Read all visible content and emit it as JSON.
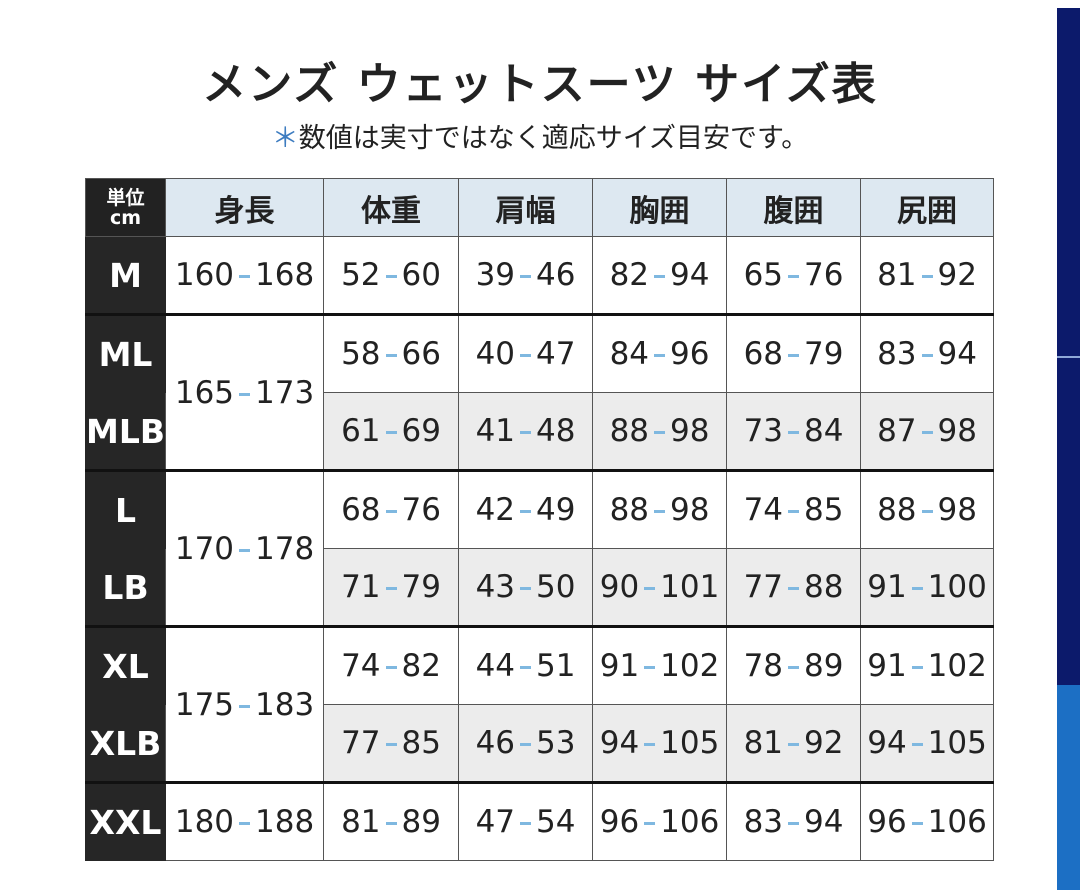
{
  "title": "メンズ ウェットスーツ サイズ表",
  "note_mark": "＊",
  "note": "数値は実寸ではなく適応サイズ目安です。",
  "table": {
    "unit": [
      "単位",
      "cm"
    ],
    "columns": [
      "身長",
      "体重",
      "肩幅",
      "胸囲",
      "腹囲",
      "尻囲"
    ],
    "groups": [
      {
        "height": [
          160,
          168
        ],
        "rows": [
          {
            "size": "M",
            "values": [
              [
                52,
                60
              ],
              [
                39,
                46
              ],
              [
                82,
                94
              ],
              [
                65,
                76
              ],
              [
                81,
                92
              ]
            ]
          }
        ]
      },
      {
        "height": [
          165,
          173
        ],
        "rows": [
          {
            "size": "ML",
            "values": [
              [
                58,
                66
              ],
              [
                40,
                47
              ],
              [
                84,
                96
              ],
              [
                68,
                79
              ],
              [
                83,
                94
              ]
            ]
          },
          {
            "size": "MLB",
            "values": [
              [
                61,
                69
              ],
              [
                41,
                48
              ],
              [
                88,
                98
              ],
              [
                73,
                84
              ],
              [
                87,
                98
              ]
            ]
          }
        ]
      },
      {
        "height": [
          170,
          178
        ],
        "rows": [
          {
            "size": "L",
            "values": [
              [
                68,
                76
              ],
              [
                42,
                49
              ],
              [
                88,
                98
              ],
              [
                74,
                85
              ],
              [
                88,
                98
              ]
            ]
          },
          {
            "size": "LB",
            "values": [
              [
                71,
                79
              ],
              [
                43,
                50
              ],
              [
                90,
                101
              ],
              [
                77,
                88
              ],
              [
                91,
                100
              ]
            ]
          }
        ]
      },
      {
        "height": [
          175,
          183
        ],
        "rows": [
          {
            "size": "XL",
            "values": [
              [
                74,
                82
              ],
              [
                44,
                51
              ],
              [
                91,
                102
              ],
              [
                78,
                89
              ],
              [
                91,
                102
              ]
            ]
          },
          {
            "size": "XLB",
            "values": [
              [
                77,
                85
              ],
              [
                46,
                53
              ],
              [
                94,
                105
              ],
              [
                81,
                92
              ],
              [
                94,
                105
              ]
            ]
          }
        ]
      },
      {
        "height": [
          180,
          188
        ],
        "rows": [
          {
            "size": "XXL",
            "values": [
              [
                81,
                89
              ],
              [
                47,
                54
              ],
              [
                96,
                106
              ],
              [
                83,
                94
              ],
              [
                96,
                106
              ]
            ]
          }
        ]
      }
    ]
  }
}
